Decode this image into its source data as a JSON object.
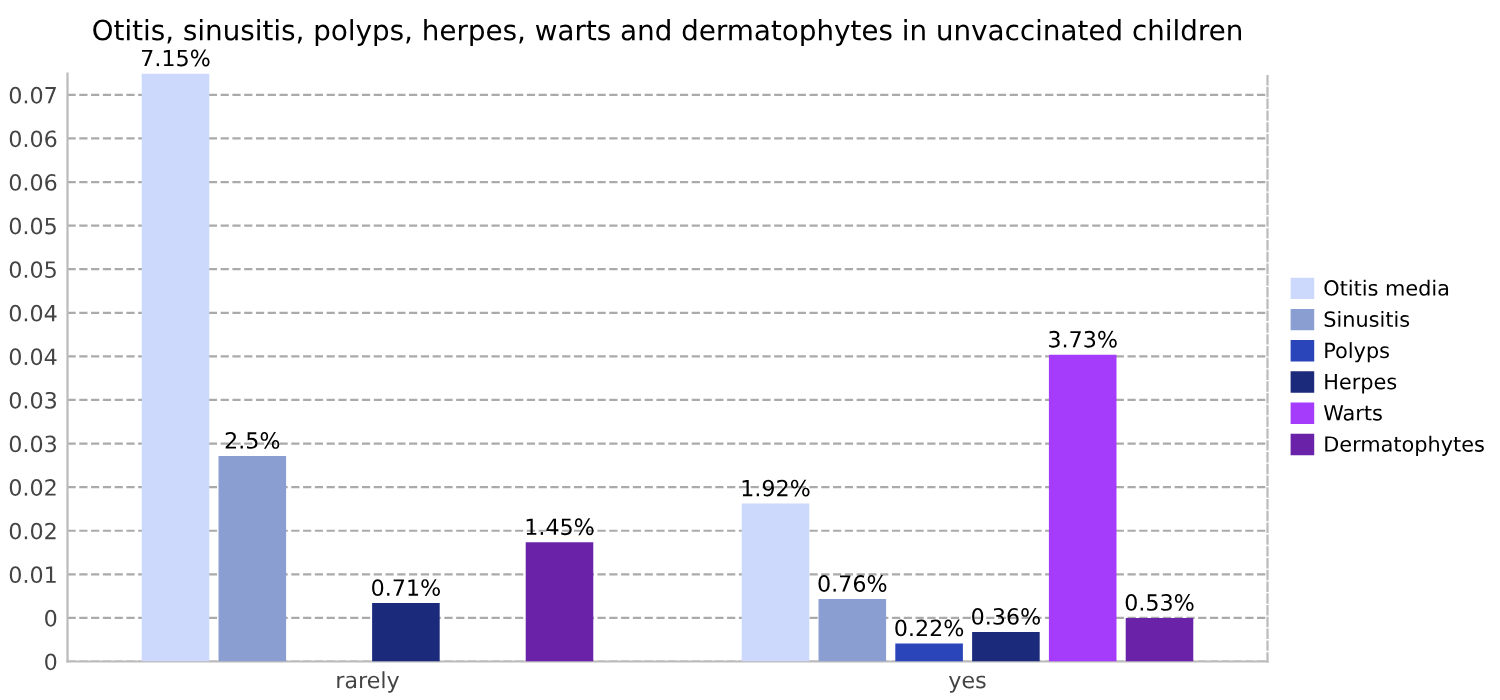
{
  "chart_data": {
    "type": "bar",
    "title": "Otitis, sinusitis, polyps, herpes, warts and dermatophytes in unvaccinated children",
    "categories": [
      "rarely",
      "yes"
    ],
    "series": [
      {
        "name": "Otitis media",
        "color": "#ccd8fc",
        "values": [
          0.0715,
          0.0192
        ],
        "value_labels": [
          "7.15%",
          "1.92%"
        ]
      },
      {
        "name": "Sinusitis",
        "color": "#8a9ed2",
        "values": [
          0.025,
          0.0076
        ],
        "value_labels": [
          "2.5%",
          "0.76%"
        ]
      },
      {
        "name": "Polyps",
        "color": "#2a45ba",
        "values": [
          null,
          0.0022
        ],
        "value_labels": [
          null,
          "0.22%"
        ]
      },
      {
        "name": "Herpes",
        "color": "#1b2a7a",
        "values": [
          0.0071,
          0.0036
        ],
        "value_labels": [
          "0.71%",
          "0.36%"
        ]
      },
      {
        "name": "Warts",
        "color": "#a53cfb",
        "values": [
          null,
          0.0373
        ],
        "value_labels": [
          null,
          "3.73%"
        ]
      },
      {
        "name": "Dermatophytes",
        "color": "#6a23a8",
        "values": [
          0.0145,
          0.0053
        ],
        "value_labels": [
          "1.45%",
          "0.53%"
        ]
      }
    ],
    "ylim": [
      0,
      0.0715
    ],
    "yticks": [
      0,
      {
        "value": 0.0053,
        "label": "0"
      },
      {
        "value": 0.0106,
        "label": "0.01"
      },
      {
        "value": 0.0159,
        "label": "0.02"
      },
      {
        "value": 0.0212,
        "label": "0.02"
      },
      {
        "value": 0.0265,
        "label": "0.03"
      },
      {
        "value": 0.0318,
        "label": "0.03"
      },
      {
        "value": 0.0371,
        "label": "0.04"
      },
      {
        "value": 0.0424,
        "label": "0.04"
      },
      {
        "value": 0.0477,
        "label": "0.05"
      },
      {
        "value": 0.053,
        "label": "0.05"
      },
      {
        "value": 0.0583,
        "label": "0.06"
      },
      {
        "value": 0.0636,
        "label": "0.06"
      },
      {
        "value": 0.0689,
        "label": "0.07"
      }
    ],
    "grid": "y",
    "legend": "right"
  }
}
